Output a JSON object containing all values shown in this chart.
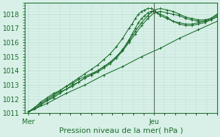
{
  "title": "",
  "xlabel": "Pression niveau de la mer( hPa )",
  "ylabel": "",
  "bg_color": "#d8f0e8",
  "plot_bg_color": "#d8f0e8",
  "grid_color": "#b8ddd0",
  "line_color": "#1a6b2a",
  "vline_color": "#556655",
  "ylim": [
    1011,
    1018.8
  ],
  "yticks": [
    1011,
    1012,
    1013,
    1014,
    1015,
    1016,
    1017,
    1018
  ],
  "xlim": [
    -0.05,
    3.0
  ],
  "series": [
    {
      "x": [
        0.0,
        0.3,
        0.6,
        0.9,
        1.2,
        1.5,
        1.8,
        2.1,
        2.4,
        2.7,
        3.0
      ],
      "y": [
        1011.1,
        1011.7,
        1012.4,
        1013.0,
        1013.7,
        1014.3,
        1015.0,
        1015.6,
        1016.3,
        1016.9,
        1017.5
      ]
    },
    {
      "x": [
        0.0,
        0.1,
        0.2,
        0.3,
        0.4,
        0.5,
        0.6,
        0.7,
        0.8,
        0.9,
        1.0,
        1.1,
        1.2,
        1.3,
        1.4,
        1.5,
        1.6,
        1.7,
        1.8,
        1.9,
        2.0,
        2.1,
        2.2,
        2.3,
        2.4,
        2.5,
        2.6,
        2.7,
        2.8,
        2.9,
        3.0
      ],
      "y": [
        1011.1,
        1011.4,
        1011.8,
        1012.1,
        1012.4,
        1012.6,
        1012.9,
        1013.1,
        1013.4,
        1013.6,
        1013.8,
        1014.0,
        1014.3,
        1014.6,
        1015.0,
        1015.5,
        1016.1,
        1016.8,
        1017.4,
        1017.9,
        1018.3,
        1018.4,
        1018.3,
        1018.2,
        1018.0,
        1017.8,
        1017.7,
        1017.6,
        1017.6,
        1017.7,
        1018.0
      ]
    },
    {
      "x": [
        0.0,
        0.1,
        0.2,
        0.3,
        0.4,
        0.5,
        0.6,
        0.7,
        0.8,
        0.9,
        1.0,
        1.1,
        1.2,
        1.3,
        1.4,
        1.5,
        1.6,
        1.7,
        1.8,
        1.9,
        2.0,
        2.1,
        2.2,
        2.3,
        2.4,
        2.5,
        2.6,
        2.7,
        2.8,
        2.9,
        3.0
      ],
      "y": [
        1011.1,
        1011.3,
        1011.6,
        1011.9,
        1012.2,
        1012.5,
        1012.7,
        1013.0,
        1013.2,
        1013.5,
        1013.7,
        1013.9,
        1014.2,
        1014.5,
        1014.9,
        1015.4,
        1016.0,
        1016.6,
        1017.2,
        1017.7,
        1018.1,
        1018.2,
        1018.1,
        1018.0,
        1017.9,
        1017.7,
        1017.6,
        1017.5,
        1017.5,
        1017.6,
        1017.8
      ]
    },
    {
      "x": [
        0.0,
        0.1,
        0.2,
        0.3,
        0.4,
        0.5,
        0.6,
        0.7,
        0.8,
        0.9,
        1.0,
        1.1,
        1.2,
        1.3,
        1.4,
        1.5,
        1.6,
        1.65,
        1.7,
        1.75,
        1.8,
        1.85,
        1.9,
        1.95,
        2.0,
        2.1,
        2.2,
        2.3,
        2.4,
        2.5,
        2.6,
        2.7,
        2.8,
        2.9,
        3.0
      ],
      "y": [
        1011.1,
        1011.3,
        1011.6,
        1011.9,
        1012.1,
        1012.4,
        1012.7,
        1012.9,
        1013.2,
        1013.5,
        1013.7,
        1014.0,
        1014.3,
        1014.6,
        1015.0,
        1015.5,
        1016.2,
        1016.6,
        1017.0,
        1017.4,
        1017.7,
        1017.9,
        1018.1,
        1018.2,
        1018.2,
        1018.0,
        1017.8,
        1017.5,
        1017.3,
        1017.2,
        1017.2,
        1017.3,
        1017.4,
        1017.6,
        1017.9
      ]
    },
    {
      "x": [
        0.0,
        0.1,
        0.2,
        0.3,
        0.4,
        0.5,
        0.6,
        0.7,
        0.8,
        0.9,
        1.0,
        1.1,
        1.2,
        1.3,
        1.4,
        1.5,
        1.6,
        1.65,
        1.7,
        1.75,
        1.8,
        1.85,
        1.9,
        1.95,
        2.0,
        2.05,
        2.1,
        2.2,
        2.3,
        2.4,
        2.5,
        2.6,
        2.7,
        2.8,
        2.9,
        3.0
      ],
      "y": [
        1011.1,
        1011.4,
        1011.7,
        1012.0,
        1012.3,
        1012.6,
        1012.9,
        1013.2,
        1013.5,
        1013.8,
        1014.1,
        1014.4,
        1014.8,
        1015.2,
        1015.7,
        1016.3,
        1017.0,
        1017.3,
        1017.7,
        1018.0,
        1018.2,
        1018.3,
        1018.4,
        1018.4,
        1018.3,
        1018.1,
        1017.9,
        1017.7,
        1017.5,
        1017.4,
        1017.3,
        1017.3,
        1017.4,
        1017.5,
        1017.7,
        1018.0
      ]
    }
  ],
  "xtick_positions": [
    0.0,
    2.0
  ],
  "xtick_labels": [
    "Mer",
    "Jeu"
  ],
  "vline_x": 2.0,
  "marker": "+",
  "markersize": 3,
  "linewidth": 0.8,
  "xlabel_fontsize": 8,
  "tick_fontsize": 7,
  "minor_grid_every": 0.1
}
